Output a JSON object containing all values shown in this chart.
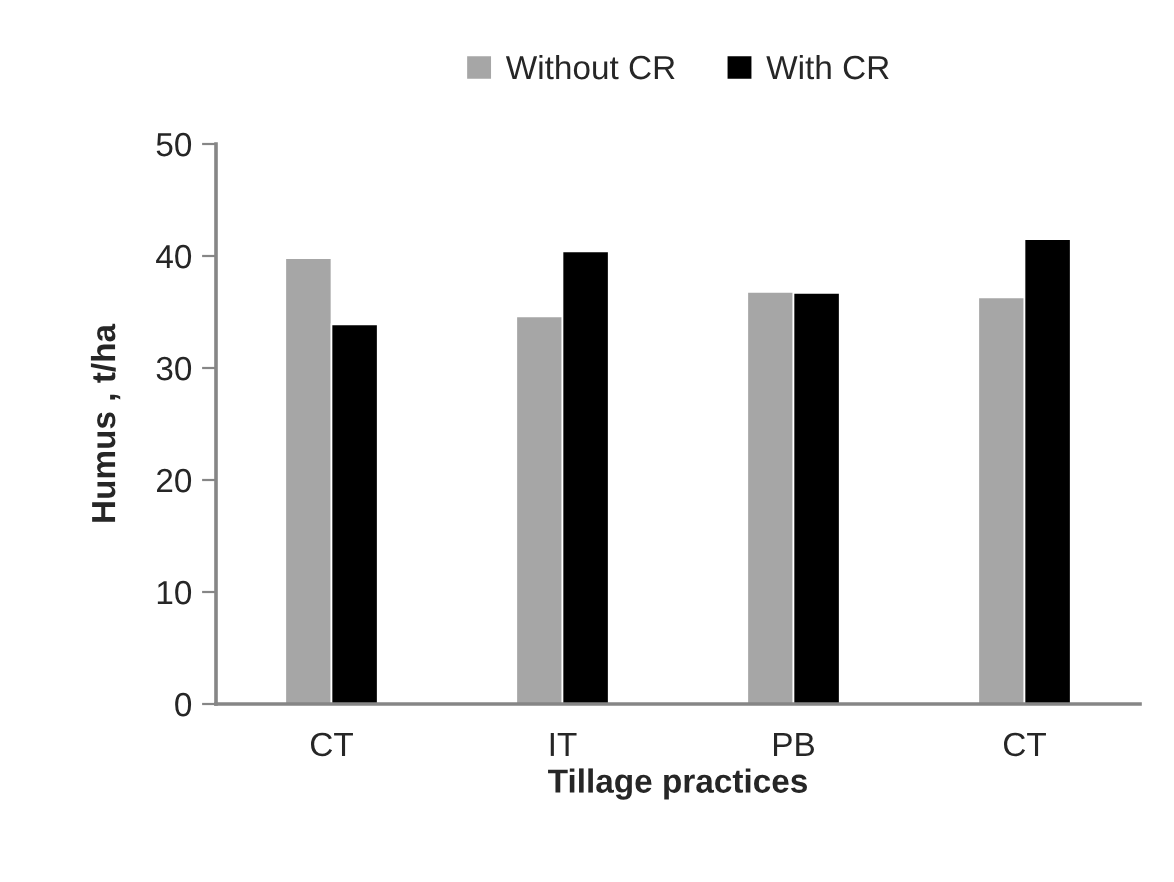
{
  "chart_data": {
    "type": "bar",
    "xlabel": "Tillage practices",
    "ylabel": "Humus , t/ha",
    "categories": [
      "CT",
      "IT",
      "PB",
      "CT"
    ],
    "series": [
      {
        "name": "Without CR",
        "color": "#a6a6a6",
        "values": [
          39.8,
          34.6,
          36.8,
          36.3
        ]
      },
      {
        "name": "With CR",
        "color": "#000000",
        "values": [
          33.9,
          40.4,
          36.7,
          41.5
        ]
      }
    ],
    "ylim": [
      0,
      50
    ],
    "yticks": [
      0,
      10,
      20,
      30,
      40,
      50
    ],
    "grid": false,
    "legend": "top"
  }
}
